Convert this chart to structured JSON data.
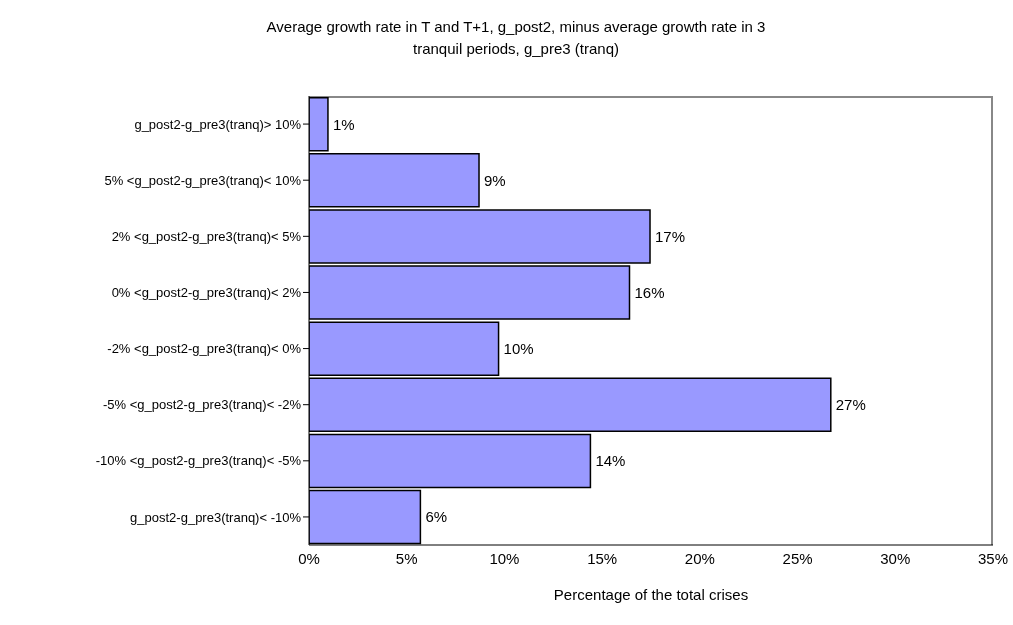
{
  "chart_data": {
    "type": "bar",
    "orientation": "horizontal",
    "title": "Average growth rate in T and T+1, g_post2, minus average growth rate in 3 tranquil periods, g_pre3 (tranq)",
    "xlabel": "Percentage of the total crises",
    "categories": [
      "g_post2-g_pre3(tranq)> 10%",
      "5% <g_post2-g_pre3(tranq)< 10%",
      "2% <g_post2-g_pre3(tranq)< 5%",
      "0% <g_post2-g_pre3(tranq)< 2%",
      "-2% <g_post2-g_pre3(tranq)< 0%",
      "-5% <g_post2-g_pre3(tranq)< -2%",
      "-10% <g_post2-g_pre3(tranq)< -5%",
      "g_post2-g_pre3(tranq)< -10%"
    ],
    "values": [
      0.97,
      8.7,
      17.45,
      16.4,
      9.7,
      26.7,
      14.4,
      5.7
    ],
    "value_labels": [
      "1%",
      "9%",
      "17%",
      "16%",
      "10%",
      "27%",
      "14%",
      "6%"
    ],
    "color": "#9999ff",
    "xlim": [
      0,
      35
    ],
    "xticks": [
      {
        "value": 0,
        "label": "0%"
      },
      {
        "value": 5,
        "label": "5%"
      },
      {
        "value": 10,
        "label": "10%"
      },
      {
        "value": 15,
        "label": "15%"
      },
      {
        "value": 20,
        "label": "20%"
      },
      {
        "value": 25,
        "label": "25%"
      },
      {
        "value": 30,
        "label": "30%"
      },
      {
        "value": 35,
        "label": "35%"
      }
    ],
    "grid": false,
    "legend": false
  }
}
